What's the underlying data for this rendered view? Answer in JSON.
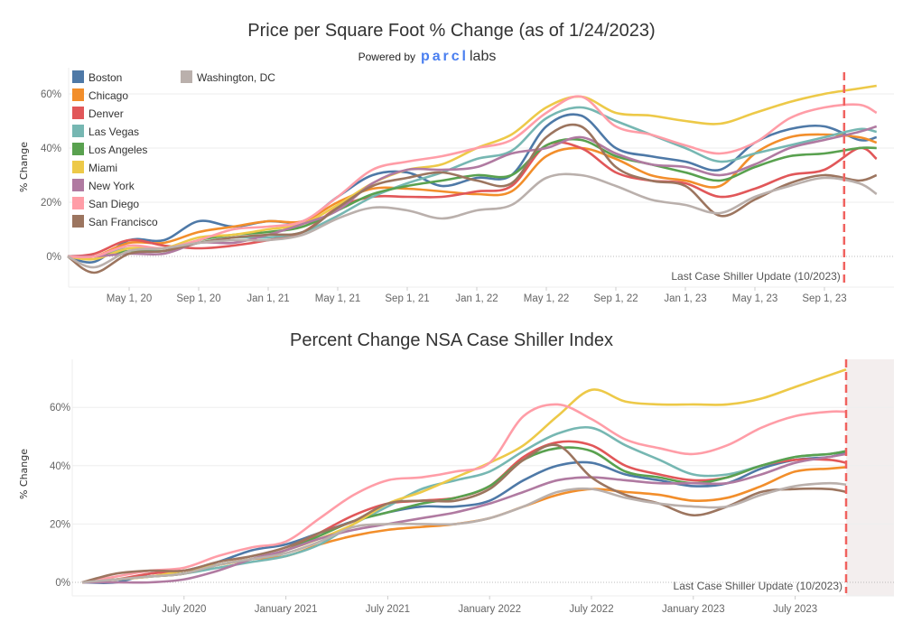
{
  "chart_data": [
    {
      "type": "line",
      "title": "Price per Square Foot % Change (as of 1/24/2023)",
      "subtitle": "Powered by",
      "logo": {
        "brand": "parcl",
        "suffix": "labs",
        "color": "#4a7ff0"
      },
      "ylabel": "% Change",
      "ylim": [
        -10,
        70
      ],
      "yticks": [
        "0%",
        "20%",
        "40%",
        "60%"
      ],
      "ytick_values": [
        0,
        20,
        40,
        60
      ],
      "xticks": [
        "May 1, 20",
        "Sep 1, 20",
        "Jan 1, 21",
        "May 1, 21",
        "Sep 1, 21",
        "Jan 1, 22",
        "May 1, 22",
        "Sep 1, 22",
        "Jan 1, 23",
        "May 1, 23",
        "Sep 1, 23"
      ],
      "xtick_dates": [
        "2020-05-01",
        "2020-09-01",
        "2021-01-01",
        "2021-05-01",
        "2021-09-01",
        "2022-01-01",
        "2022-05-01",
        "2022-09-01",
        "2023-01-01",
        "2023-05-01",
        "2023-09-01"
      ],
      "grid": true,
      "legend_position": "top-left",
      "annotation": {
        "text": "Last Case Shiller Update (10/2023)",
        "date": "2023-10-05",
        "color": "#f0625f"
      },
      "x": [
        "2020-01-15",
        "2020-03-01",
        "2020-05-01",
        "2020-07-01",
        "2020-09-01",
        "2020-11-01",
        "2021-01-01",
        "2021-03-01",
        "2021-05-01",
        "2021-07-01",
        "2021-09-01",
        "2021-11-01",
        "2022-01-01",
        "2022-03-01",
        "2022-05-01",
        "2022-07-01",
        "2022-09-01",
        "2022-11-01",
        "2023-01-01",
        "2023-03-01",
        "2023-05-01",
        "2023-07-01",
        "2023-09-01",
        "2023-11-01",
        "2023-12-01"
      ],
      "series": [
        {
          "name": "Boston",
          "color": "#4e79a7",
          "values": [
            0,
            -2,
            6,
            6,
            13,
            11,
            13,
            13,
            22,
            30,
            31,
            26,
            29,
            30,
            48,
            52,
            40,
            37,
            35,
            32,
            42,
            47,
            48,
            43,
            44
          ]
        },
        {
          "name": "Chicago",
          "color": "#f28e2b",
          "values": [
            0,
            0,
            5,
            5,
            9,
            11,
            13,
            13,
            20,
            25,
            25,
            24,
            23,
            24,
            37,
            40,
            36,
            30,
            28,
            26,
            38,
            44,
            45,
            44,
            42
          ]
        },
        {
          "name": "Denver",
          "color": "#e15759",
          "values": [
            0,
            1,
            6,
            4,
            3,
            4,
            6,
            9,
            18,
            22,
            22,
            22,
            24,
            26,
            41,
            40,
            31,
            28,
            27,
            22,
            25,
            30,
            32,
            40,
            36
          ]
        },
        {
          "name": "Las Vegas",
          "color": "#76b7b2",
          "values": [
            0,
            0,
            3,
            2,
            5,
            7,
            7,
            9,
            15,
            22,
            27,
            31,
            36,
            39,
            51,
            55,
            50,
            45,
            40,
            35,
            38,
            41,
            44,
            47,
            46
          ]
        },
        {
          "name": "Los Angeles",
          "color": "#59a14f",
          "values": [
            0,
            0,
            2,
            2,
            6,
            8,
            9,
            11,
            17,
            23,
            26,
            28,
            30,
            30,
            41,
            43,
            37,
            34,
            31,
            28,
            33,
            37,
            38,
            40,
            40
          ]
        },
        {
          "name": "Miami",
          "color": "#edc948",
          "values": [
            0,
            -1,
            3,
            3,
            7,
            8,
            10,
            12,
            19,
            27,
            32,
            34,
            40,
            45,
            55,
            59,
            53,
            52,
            50,
            49,
            53,
            57,
            60,
            62,
            63
          ]
        },
        {
          "name": "New York",
          "color": "#b07aa1",
          "values": [
            0,
            0,
            1,
            1,
            5,
            5,
            8,
            12,
            17,
            27,
            32,
            32,
            33,
            38,
            40,
            44,
            38,
            34,
            33,
            30,
            34,
            40,
            43,
            46,
            48
          ]
        },
        {
          "name": "San Diego",
          "color": "#ff9da7",
          "values": [
            0,
            0,
            4,
            3,
            6,
            10,
            11,
            13,
            22,
            32,
            35,
            37,
            40,
            43,
            53,
            59,
            48,
            45,
            41,
            38,
            42,
            51,
            55,
            56,
            53
          ]
        },
        {
          "name": "San Francisco",
          "color": "#9c755f",
          "values": [
            0,
            -6,
            1,
            2,
            5,
            7,
            8,
            9,
            18,
            26,
            29,
            31,
            28,
            27,
            44,
            48,
            33,
            28,
            26,
            15,
            21,
            27,
            30,
            28,
            30
          ]
        },
        {
          "name": "Washington, DC",
          "color": "#bab0ac",
          "values": [
            0,
            -4,
            2,
            3,
            5,
            6,
            6,
            8,
            14,
            18,
            17,
            14,
            17,
            19,
            29,
            30,
            26,
            21,
            19,
            16,
            22,
            26,
            29,
            27,
            23
          ]
        }
      ]
    },
    {
      "type": "line",
      "title": "Percent Change NSA Case Shiller Index",
      "ylabel": "% Change",
      "ylim": [
        -3,
        78
      ],
      "yticks": [
        "0%",
        "20%",
        "40%",
        "60%"
      ],
      "ytick_values": [
        0,
        20,
        40,
        60
      ],
      "xticks": [
        "July 2020",
        "January 2021",
        "July 2021",
        "January 2022",
        "July 2022",
        "January 2023",
        "July 2023"
      ],
      "xtick_dates": [
        "2020-07-01",
        "2021-01-01",
        "2021-07-01",
        "2022-01-01",
        "2022-07-01",
        "2023-01-01",
        "2023-07-01"
      ],
      "grid": true,
      "annotation": {
        "text": "Last Case Shiller Update (10/2023)",
        "date": "2023-10-01",
        "color": "#f0625f",
        "shade_color": "#f3eeee"
      },
      "x": [
        "2020-01-01",
        "2020-03-01",
        "2020-05-01",
        "2020-07-01",
        "2020-09-01",
        "2020-11-01",
        "2021-01-01",
        "2021-03-01",
        "2021-05-01",
        "2021-07-01",
        "2021-09-01",
        "2021-11-01",
        "2022-01-01",
        "2022-03-01",
        "2022-05-01",
        "2022-07-01",
        "2022-09-01",
        "2022-11-01",
        "2023-01-01",
        "2023-03-01",
        "2023-05-01",
        "2023-07-01",
        "2023-09-01",
        "2023-10-01"
      ],
      "series": [
        {
          "name": "Boston",
          "color": "#4e79a7",
          "values": [
            0,
            0,
            3,
            4,
            7,
            11,
            13,
            17,
            21,
            24,
            26,
            26,
            28,
            35,
            40,
            41,
            37,
            35,
            33,
            34,
            39,
            42,
            43,
            44.5
          ]
        },
        {
          "name": "Chicago",
          "color": "#f28e2b",
          "values": [
            0,
            1,
            2,
            3,
            6,
            8,
            9,
            13,
            16,
            18,
            19,
            20,
            22,
            26,
            30,
            32,
            31,
            30,
            28,
            29,
            33,
            38,
            39,
            39.5
          ]
        },
        {
          "name": "Denver",
          "color": "#e15759",
          "values": [
            0,
            1,
            3,
            4,
            6,
            8,
            11,
            17,
            23,
            27,
            28,
            29,
            33,
            43,
            48,
            47,
            40,
            37,
            35,
            36,
            40,
            42,
            42,
            41
          ]
        },
        {
          "name": "Las Vegas",
          "color": "#76b7b2",
          "values": [
            0,
            1,
            2,
            3,
            5,
            7,
            9,
            13,
            20,
            26,
            32,
            35,
            38,
            45,
            51,
            53,
            47,
            42,
            37,
            37,
            40,
            43,
            44,
            45
          ]
        },
        {
          "name": "Los Angeles",
          "color": "#59a14f",
          "values": [
            0,
            1,
            2,
            3,
            6,
            8,
            11,
            16,
            21,
            24,
            27,
            29,
            33,
            42,
            46,
            45,
            38,
            36,
            34,
            36,
            40,
            43,
            44,
            45
          ]
        },
        {
          "name": "Miami",
          "color": "#edc948",
          "values": [
            0,
            1,
            2,
            4,
            6,
            8,
            11,
            15,
            20,
            27,
            31,
            36,
            41,
            47,
            57,
            66,
            62,
            61,
            61,
            61,
            63,
            67,
            71,
            73
          ]
        },
        {
          "name": "New York",
          "color": "#b07aa1",
          "values": [
            0,
            0,
            0,
            1,
            4,
            8,
            11,
            15,
            18,
            20,
            22,
            24,
            27,
            31,
            35,
            36,
            35,
            34,
            34,
            34,
            37,
            41,
            43,
            44
          ]
        },
        {
          "name": "San Diego",
          "color": "#ff9da7",
          "values": [
            0,
            2,
            4,
            5,
            9,
            12,
            14,
            22,
            30,
            35,
            36,
            38,
            41,
            57,
            61,
            56,
            49,
            46,
            44,
            47,
            53,
            57,
            58.5,
            58.5
          ]
        },
        {
          "name": "San Francisco",
          "color": "#9c755f",
          "values": [
            0,
            3,
            4,
            4,
            7,
            9,
            12,
            17,
            21,
            27,
            28,
            28,
            32,
            42,
            47,
            36,
            30,
            27,
            23,
            26,
            31,
            32,
            32,
            31
          ]
        },
        {
          "name": "Washington, DC",
          "color": "#bab0ac",
          "values": [
            0,
            1,
            2,
            3,
            6,
            8,
            10,
            14,
            19,
            20,
            20,
            20,
            22,
            26,
            31,
            32,
            29,
            27,
            26,
            26,
            30,
            33,
            34,
            33.5
          ]
        }
      ]
    }
  ]
}
